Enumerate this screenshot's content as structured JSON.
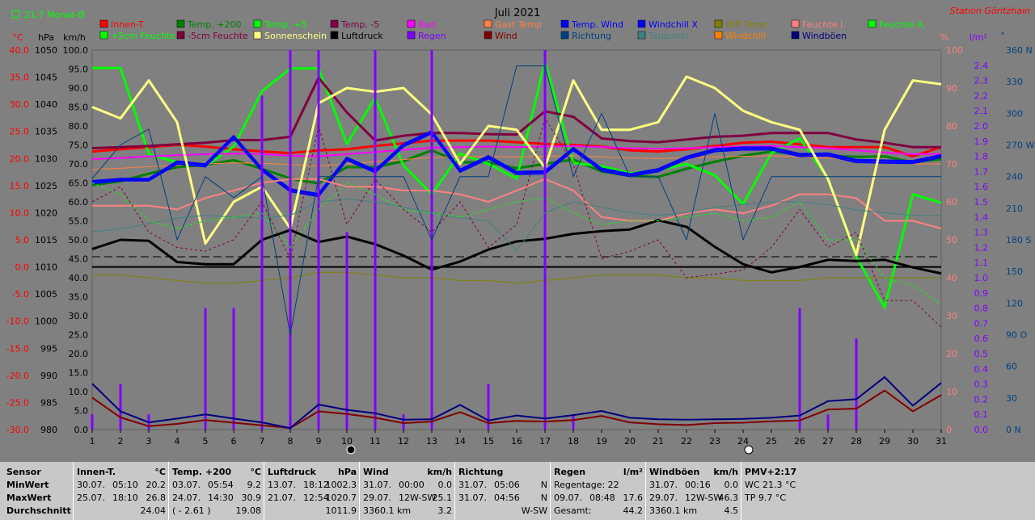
{
  "header": {
    "title": "Juli 2021",
    "station": "Station Göritzhain",
    "indicator": "21.7 Monat-Ø"
  },
  "axes": {
    "units": {
      "celsius": "°C",
      "hpa": "hPa",
      "kmh": "km/h",
      "percent": "%",
      "lm2": "l/m²",
      "deg": "°"
    },
    "celsius_ticks": [
      "40.0",
      "35.0",
      "30.0",
      "25.0",
      "20.0",
      "15.0",
      "10.0",
      "5.0",
      "0.0",
      "-5.0",
      "-10.0",
      "-15.0",
      "-20.0",
      "-25.0",
      "-30.0"
    ],
    "hpa_ticks": [
      "1050",
      "1045",
      "1040",
      "1035",
      "1030",
      "1025",
      "1020",
      "1015",
      "1010",
      "1005",
      "1000",
      "995",
      "990",
      "985",
      "980"
    ],
    "kmh_ticks": [
      "100.0",
      "95.0",
      "90.0",
      "85.0",
      "80.0",
      "75.0",
      "70.0",
      "65.0",
      "60.0",
      "55.0",
      "50.0",
      "45.0",
      "40.0",
      "35.0",
      "30.0",
      "25.0",
      "20.0",
      "15.0",
      "10.0",
      "5.0",
      "0.0"
    ],
    "percent_ticks": [
      "100",
      "90",
      "80",
      "70",
      "60",
      "50",
      "40",
      "30",
      "20",
      "10",
      "0"
    ],
    "rain_ticks": [
      "2.4",
      "2.3",
      "2.2",
      "2.1",
      "2.0",
      "1.9",
      "1.8",
      "1.7",
      "1.6",
      "1.5",
      "1.4",
      "1.3",
      "1.2",
      "1.1",
      "1.0",
      "0.9",
      "0.8",
      "0.7",
      "0.6",
      "0.5",
      "0.4",
      "0.3",
      "0.2",
      "0.1",
      "0.0"
    ],
    "dir_ticks": [
      "360 N",
      "330",
      "300",
      "270 W",
      "240",
      "210",
      "180 S",
      "150",
      "120",
      "90 O",
      "60",
      "30",
      "0 N"
    ],
    "x_ticks": [
      "1",
      "2",
      "3",
      "4",
      "5",
      "6",
      "7",
      "8",
      "9",
      "10",
      "11",
      "12",
      "13",
      "14",
      "15",
      "16",
      "17",
      "18",
      "19",
      "20",
      "21",
      "22",
      "23",
      "24",
      "25",
      "26",
      "27",
      "28",
      "29",
      "30",
      "31"
    ]
  },
  "legend": [
    {
      "label": "Innen-T.",
      "color": "#ff0000"
    },
    {
      "label": "Temp. +200",
      "color": "#008000"
    },
    {
      "label": "Temp. +5",
      "color": "#00ff00"
    },
    {
      "label": "Temp. -5",
      "color": "#800040"
    },
    {
      "label": "Bad",
      "color": "#ff00ff"
    },
    {
      "label": "Gast Temp",
      "color": "#ff8040"
    },
    {
      "label": "Temp. Wind",
      "color": "#0000ff"
    },
    {
      "label": "Windchill X",
      "color": "#0000ff"
    },
    {
      "label": "Diff Temp.",
      "color": "#808000"
    },
    {
      "label": "Feuchte I.",
      "color": "#ff8080"
    },
    {
      "label": "Feuchte A.",
      "color": "#00ff00"
    },
    {
      "label": "+5cm Feuchte",
      "color": "#00ff00"
    },
    {
      "label": "-5cm Feuchte",
      "color": "#800040"
    },
    {
      "label": "Sonnenschein",
      "color": "#ffff80"
    },
    {
      "label": "Luftdruck",
      "color": "#000000"
    },
    {
      "label": "Regen",
      "color": "#8000ff"
    },
    {
      "label": "Wind",
      "color": "#800000"
    },
    {
      "label": "Richtung",
      "color": "#004080"
    },
    {
      "label": "Taupunkt",
      "color": "#408080"
    },
    {
      "label": "Windchill",
      "color": "#ff8000"
    },
    {
      "label": "Windböen",
      "color": "#000080"
    }
  ],
  "chart_data": {
    "type": "line",
    "title": "Juli 2021",
    "x": [
      1,
      2,
      3,
      4,
      5,
      6,
      7,
      8,
      9,
      10,
      11,
      12,
      13,
      14,
      15,
      16,
      17,
      18,
      19,
      20,
      21,
      22,
      23,
      24,
      25,
      26,
      27,
      28,
      29,
      30,
      31
    ],
    "ylim_celsius": [
      -30,
      40
    ],
    "ylim_hpa": [
      980,
      1050
    ],
    "ylim_kmh": [
      0,
      100
    ],
    "ylim_percent": [
      0,
      100
    ],
    "ylim_rain": [
      0,
      2.5
    ],
    "ylim_dir": [
      0,
      360
    ],
    "reference_lines": {
      "monthly_mean_celsius": 21.7,
      "pressure_hpa": 1010
    },
    "series": [
      {
        "name": "Innen-T.",
        "color": "#ff0000",
        "axis": "celsius",
        "width": 3,
        "values": [
          21.3,
          21.7,
          22.1,
          22.5,
          22.2,
          21.7,
          21.3,
          21.0,
          21.5,
          21.7,
          22.3,
          22.8,
          23.3,
          23.3,
          23.3,
          23.0,
          22.7,
          22.5,
          22.2,
          21.5,
          21.3,
          21.7,
          22.3,
          22.9,
          23.1,
          22.6,
          22.1,
          22.1,
          22.1,
          20.4,
          22.1
        ]
      },
      {
        "name": "Temp. +200",
        "color": "#008000",
        "axis": "celsius",
        "width": 3,
        "values": [
          15.1,
          15.8,
          17.2,
          18.4,
          18.8,
          19.7,
          18.1,
          16.3,
          15.4,
          18.4,
          18.4,
          19.5,
          21.5,
          19.3,
          19.3,
          18.2,
          19.0,
          19.8,
          17.6,
          16.8,
          16.6,
          18.1,
          19.4,
          20.5,
          21.3,
          20.8,
          20.5,
          20.3,
          20.4,
          19.3,
          19.9
        ]
      },
      {
        "name": "Temp. +5",
        "color": "#00ff00",
        "axis": "celsius",
        "width": 3,
        "values": [
          36.7,
          36.7,
          20.8,
          19.3,
          18.6,
          22.2,
          32.4,
          36.6,
          36.6,
          22.7,
          31.2,
          18.7,
          13.4,
          20.9,
          19.0,
          16.3,
          37.9,
          19.2,
          18.6,
          17.3,
          17.8,
          19.0,
          16.9,
          11.6,
          21.0,
          23.7,
          16.3,
          1.9,
          -7.5,
          13.4,
          11.8
        ]
      },
      {
        "name": "Temp. -5",
        "color": "#800040",
        "axis": "celsius",
        "width": 3,
        "values": [
          21.9,
          22.1,
          22.3,
          22.6,
          22.9,
          23.4,
          23.4,
          24.0,
          34.9,
          28.5,
          23.3,
          24.2,
          24.7,
          24.7,
          24.5,
          24.4,
          28.7,
          27.7,
          23.7,
          23.2,
          23.0,
          23.5,
          24.0,
          24.2,
          24.7,
          24.7,
          24.7,
          23.5,
          22.9,
          22.1,
          22.1
        ]
      },
      {
        "name": "Bad",
        "color": "#ff00ff",
        "axis": "celsius",
        "width": 2,
        "values": [
          19.9,
          20.1,
          20.4,
          20.6,
          20.8,
          20.9,
          20.8,
          20.5,
          20.4,
          20.8,
          21.2,
          21.6,
          22.0,
          22.1,
          22.2,
          22.1,
          22.2,
          22.3,
          22.1,
          21.9,
          21.8,
          21.9,
          22.1,
          22.2,
          22.3,
          22.1,
          21.9,
          21.5,
          21.1,
          20.8,
          20.8
        ]
      },
      {
        "name": "Gast Temp",
        "color": "#ff8040",
        "axis": "celsius",
        "width": 1,
        "values": [
          18.0,
          18.2,
          18.5,
          18.7,
          19.0,
          19.2,
          19.1,
          18.9,
          18.6,
          19.0,
          19.4,
          19.8,
          20.2,
          20.3,
          20.4,
          20.3,
          20.4,
          20.5,
          20.3,
          20.1,
          20.0,
          20.1,
          20.3,
          20.4,
          20.5,
          20.3,
          20.1,
          19.7,
          19.3,
          19.0,
          19.0
        ]
      },
      {
        "name": "Temp. Wind",
        "color": "#0000ff",
        "axis": "celsius",
        "width": 3,
        "values": [
          15.8,
          16.2,
          16.2,
          19.4,
          18.9,
          24.1,
          18.1,
          14.3,
          13.4,
          20.1,
          17.8,
          22.6,
          25.0,
          17.9,
          20.4,
          17.5,
          17.6,
          21.9,
          18.1,
          17.1,
          18.0,
          20.3,
          21.7,
          22.0,
          22.0,
          20.8,
          20.9,
          19.7,
          19.6,
          19.5,
          20.6
        ]
      },
      {
        "name": "Windchill X",
        "color": "#0000ff",
        "axis": "celsius",
        "width": 2,
        "values": [
          15.4,
          15.9,
          15.9,
          19.0,
          18.5,
          23.7,
          17.7,
          13.9,
          13.0,
          19.7,
          17.4,
          22.2,
          24.6,
          17.5,
          20.0,
          17.1,
          17.2,
          21.5,
          17.7,
          16.7,
          17.6,
          19.9,
          21.3,
          21.6,
          21.6,
          20.4,
          20.5,
          19.3,
          19.2,
          19.1,
          20.2
        ]
      },
      {
        "name": "Diff Temp.",
        "color": "#808000",
        "axis": "celsius",
        "width": 1,
        "values": [
          -1.5,
          -1.5,
          -2.0,
          -2.5,
          -3.0,
          -3.0,
          -2.5,
          -2.0,
          -1.0,
          -1.0,
          -1.5,
          -2.0,
          -2.0,
          -2.5,
          -2.5,
          -3.0,
          -2.5,
          -2.0,
          -1.5,
          -1.5,
          -1.5,
          -2.0,
          -2.0,
          -2.5,
          -2.5,
          -2.5,
          -2.0,
          -2.0,
          -2.0,
          -2.0,
          -2.0
        ]
      },
      {
        "name": "Feuchte I.",
        "color": "#ff8080",
        "axis": "percent",
        "width": 2,
        "values": [
          59,
          59,
          59,
          58,
          61,
          63,
          65,
          66,
          66,
          64,
          64,
          63,
          63,
          62,
          60,
          63,
          66,
          63,
          56,
          55,
          55,
          57,
          58,
          57,
          59,
          62,
          62,
          61,
          55,
          55,
          53
        ]
      },
      {
        "name": "Sonnenschein",
        "color": "#ffff80",
        "axis": "percent",
        "width": 3,
        "values": [
          85,
          82,
          92,
          81,
          49,
          60,
          64,
          53,
          86,
          90,
          89,
          90,
          83,
          70,
          80,
          79,
          69,
          92,
          79,
          79,
          81,
          93,
          90,
          84,
          81,
          79,
          66,
          46,
          79,
          92,
          91
        ]
      },
      {
        "name": "Luftdruck",
        "color": "#000000",
        "axis": "hpa",
        "width": 3,
        "values": [
          1013.3,
          1015.0,
          1014.8,
          1010.9,
          1010.5,
          1010.5,
          1015.0,
          1016.8,
          1014.6,
          1015.6,
          1014.2,
          1012.1,
          1009.5,
          1011.0,
          1013.2,
          1014.7,
          1015.2,
          1016.1,
          1016.6,
          1016.9,
          1018.6,
          1017.4,
          1013.7,
          1010.5,
          1009.0,
          1010.0,
          1011.3,
          1011.1,
          1011.3,
          1009.9,
          1008.8
        ]
      },
      {
        "name": "Regen",
        "color": "#8000ff",
        "axis": "rain",
        "width": 1,
        "values": [
          0.1,
          0.3,
          0.1,
          0.0,
          0.8,
          0.8,
          2.2,
          2.5,
          2.5,
          1.3,
          2.5,
          0.1,
          2.5,
          0.0,
          0.3,
          0.0,
          2.5,
          0.1,
          0.0,
          0.0,
          0.0,
          0.0,
          0.0,
          0.0,
          0.0,
          0.8,
          0.1,
          0.6,
          0.0,
          0.0,
          0.0
        ]
      },
      {
        "name": "Wind",
        "color": "#800000",
        "axis": "kmh",
        "width": 2,
        "values": [
          8.4,
          3.2,
          0.9,
          1.5,
          2.5,
          1.8,
          1.1,
          0.4,
          4.8,
          4.1,
          3.1,
          1.7,
          2.1,
          4.6,
          1.7,
          2.3,
          2.1,
          2.5,
          3.6,
          1.9,
          1.4,
          1.2,
          1.7,
          1.8,
          2.2,
          2.4,
          5.3,
          5.5,
          10.3,
          4.8,
          9.1
        ]
      },
      {
        "name": "Windböen",
        "color": "#000080",
        "axis": "kmh",
        "width": 2,
        "values": [
          12.1,
          4.8,
          1.9,
          2.9,
          4.0,
          2.9,
          1.9,
          0.4,
          6.6,
          5.2,
          4.3,
          2.6,
          2.7,
          6.5,
          2.4,
          3.7,
          2.9,
          3.8,
          4.9,
          3.1,
          2.7,
          2.6,
          2.7,
          2.8,
          3.1,
          3.7,
          7.5,
          8.0,
          13.8,
          6.3,
          12.3
        ]
      },
      {
        "name": "Richtung",
        "color": "#004080",
        "axis": "dir",
        "width": 1,
        "values": [
          238,
          270,
          285,
          180,
          240,
          220,
          240,
          90,
          240,
          240,
          240,
          240,
          180,
          240,
          240,
          345,
          345,
          240,
          300,
          240,
          240,
          180,
          300,
          180,
          240,
          240,
          240,
          240,
          240,
          240,
          240
        ]
      },
      {
        "name": "Taupunkt",
        "color": "#408080",
        "axis": "celsius",
        "width": 1,
        "values": [
          6.5,
          7.0,
          8.0,
          9.0,
          9.5,
          9.2,
          9.0,
          9.5,
          12.0,
          12.5,
          12.0,
          11.0,
          10.0,
          9.0,
          8.5,
          3.0,
          10.0,
          12.0,
          11.0,
          10.0,
          9.5,
          10.0,
          11.0,
          11.5,
          12.0,
          12.0,
          11.5,
          10.5,
          10.0,
          9.5,
          9.5
        ]
      },
      {
        "name": "Feuchte A.",
        "color": "#00ff00",
        "axis": "percent",
        "width": 1,
        "dash": "3,3",
        "values": [
          65,
          62,
          55,
          53,
          55,
          56,
          57,
          48,
          58,
          65,
          62,
          58,
          57,
          56,
          58,
          60,
          61,
          57,
          54,
          55,
          55,
          56,
          57,
          55,
          56,
          60,
          50,
          50,
          40,
          38,
          33
        ]
      },
      {
        "name": "-5cm Feuchte",
        "color": "#800040",
        "axis": "percent",
        "width": 1,
        "dash": "3,3",
        "values": [
          60,
          64,
          52,
          48,
          47,
          50,
          60,
          45,
          80,
          54,
          66,
          58,
          52,
          60,
          48,
          54,
          82,
          70,
          45,
          47,
          50,
          40,
          41,
          42,
          48,
          58,
          48,
          52,
          34,
          34,
          27
        ]
      }
    ]
  },
  "stats": {
    "labels": [
      "Sensor",
      "MinWert",
      "MaxWert",
      "Durchschnitt"
    ],
    "blocks": [
      {
        "title": "Innen-T.",
        "unit": "°C",
        "rows": [
          [
            "30.07.",
            "05:10",
            "20.2"
          ],
          [
            "25.07.",
            "18:10",
            "26.8"
          ],
          [
            "",
            "",
            "24.04"
          ]
        ]
      },
      {
        "title": "Temp. +200",
        "unit": "°C",
        "rows": [
          [
            "03.07.",
            "05:54",
            "9.2"
          ],
          [
            "24.07.",
            "14:30",
            "30.9"
          ],
          [
            "( - 2.61 )",
            "",
            "19.08"
          ]
        ]
      },
      {
        "title": "Luftdruck",
        "unit": "hPa",
        "rows": [
          [
            "13.07.",
            "18:12",
            "1002.3"
          ],
          [
            "21.07.",
            "12:54",
            "1020.7"
          ],
          [
            "",
            "",
            "1011.9"
          ]
        ]
      },
      {
        "title": "Wind",
        "unit": "km/h",
        "rows": [
          [
            "31.07.",
            "00:00",
            "0.0"
          ],
          [
            "29.07.",
            "12W-SW",
            "25.1"
          ],
          [
            "3360.1 km",
            "",
            "3.2"
          ]
        ]
      },
      {
        "title": "Richtung",
        "unit": "",
        "rows": [
          [
            "31.07.",
            "05:06",
            "N"
          ],
          [
            "31.07.",
            "04:56",
            "N"
          ],
          [
            "",
            "",
            "W-SW"
          ]
        ]
      },
      {
        "title": "Regen",
        "unit": "l/m²",
        "rows": [
          [
            "Regentage: 22",
            "",
            ""
          ],
          [
            "09.07.",
            "08:48",
            "17.6"
          ],
          [
            "Gesamt:",
            "",
            "44.2"
          ]
        ]
      },
      {
        "title": "Windböen",
        "unit": "km/h",
        "rows": [
          [
            "31.07.",
            "00:16",
            "0.0"
          ],
          [
            "29.07.",
            "12W-SW",
            "46.3"
          ],
          [
            "3360.1 km",
            "",
            "4.5"
          ]
        ]
      },
      {
        "title": "PMV+2:17",
        "unit": "",
        "rows": [
          [
            "WC 21.3 °C",
            "",
            ""
          ],
          [
            "TP 9.7 °C",
            "",
            ""
          ],
          [
            "",
            "",
            ""
          ]
        ]
      }
    ]
  }
}
